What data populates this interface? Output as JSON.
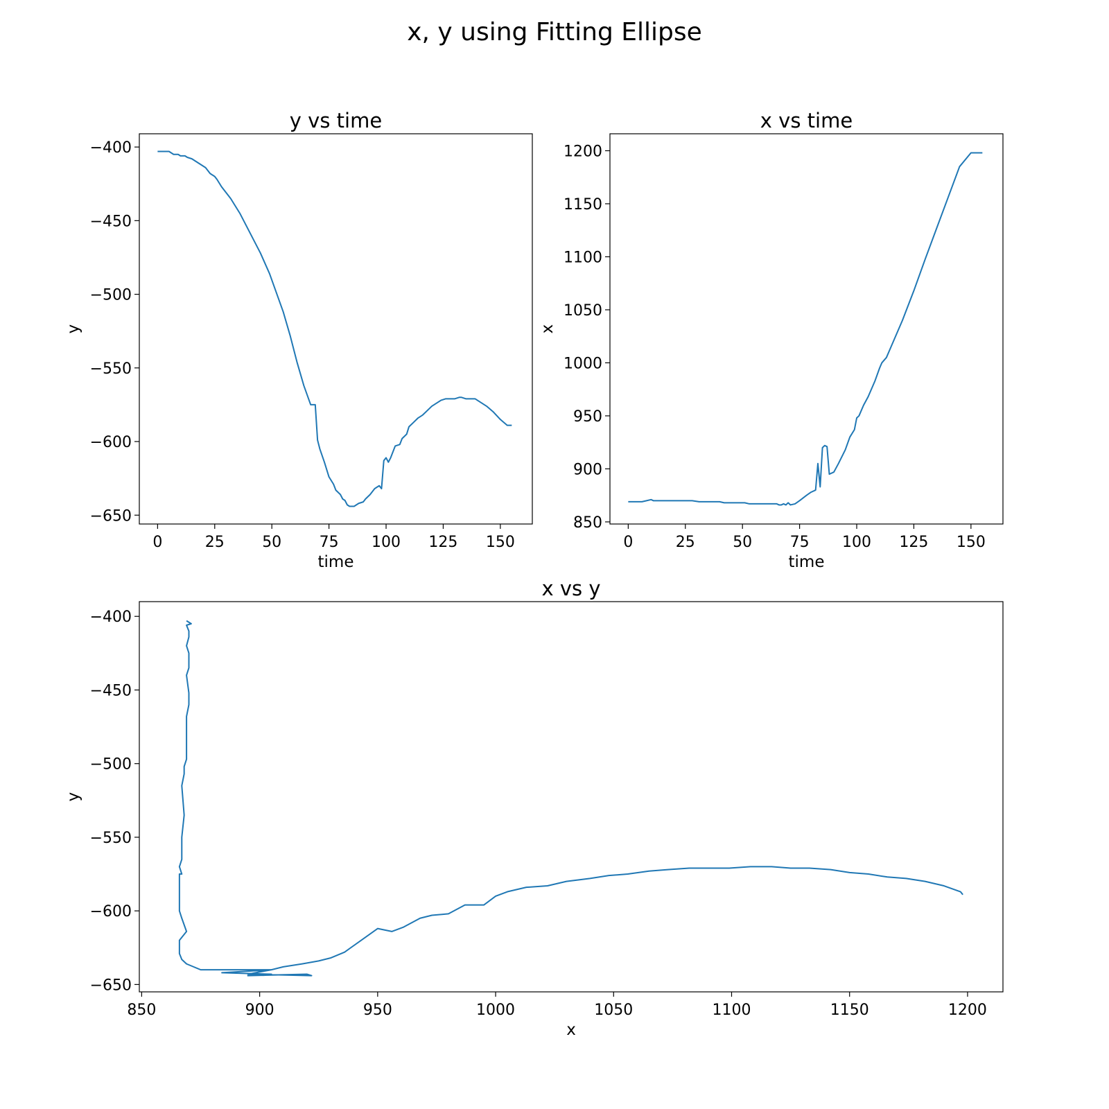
{
  "figure": {
    "title": "x, y using Fitting Ellipse"
  },
  "chart_data": [
    {
      "id": "y-vs-time",
      "type": "line",
      "title": "y vs time",
      "xlabel": "time",
      "ylabel": "y",
      "xlim": [
        -8,
        164
      ],
      "ylim": [
        -656,
        -391
      ],
      "xticks": [
        0,
        25,
        50,
        75,
        100,
        125,
        150
      ],
      "yticks": [
        -400,
        -450,
        -500,
        -550,
        -600,
        -650
      ],
      "grid": false,
      "color": "#1f77b4",
      "series": [
        {
          "x": [
            0,
            2,
            4,
            5,
            7,
            9,
            10,
            12,
            13,
            15,
            17,
            19,
            21,
            23,
            25,
            26,
            28,
            30,
            32,
            34,
            36,
            37,
            39,
            41,
            43,
            45,
            47,
            49,
            52,
            55,
            58,
            61,
            64,
            67,
            69,
            70,
            71,
            73,
            75,
            77,
            78,
            80,
            81,
            82,
            83,
            84,
            85,
            86,
            88,
            90,
            91,
            93,
            95,
            97,
            98,
            99,
            100,
            101,
            102,
            104,
            106,
            107,
            109,
            110,
            112,
            114,
            116,
            118,
            120,
            122,
            124,
            126,
            128,
            130,
            132,
            133,
            135,
            137,
            139,
            141,
            144,
            147,
            150,
            153,
            155
          ],
          "y": [
            -403,
            -403,
            -403,
            -403,
            -405,
            -405,
            -406,
            -406,
            -407,
            -408,
            -410,
            -412,
            -414,
            -418,
            -420,
            -422,
            -427,
            -431,
            -435,
            -440,
            -445,
            -448,
            -454,
            -460,
            -466,
            -472,
            -479,
            -486,
            -499,
            -512,
            -528,
            -546,
            -562,
            -575,
            -575,
            -599,
            -605,
            -614,
            -624,
            -629,
            -633,
            -636,
            -639,
            -640,
            -643,
            -644,
            -644,
            -644,
            -642,
            -641,
            -639,
            -636,
            -632,
            -630,
            -632,
            -613,
            -611,
            -614,
            -611,
            -603,
            -602,
            -598,
            -595,
            -590,
            -587,
            -584,
            -582,
            -579,
            -576,
            -574,
            -572,
            -571,
            -571,
            -571,
            -570,
            -570,
            -571,
            -571,
            -571,
            -573,
            -576,
            -580,
            -585,
            -589,
            -589
          ]
        }
      ]
    },
    {
      "id": "x-vs-time",
      "type": "line",
      "title": "x vs time",
      "xlabel": "time",
      "ylabel": "x",
      "xlim": [
        -8,
        164
      ],
      "ylim": [
        848,
        1216
      ],
      "xticks": [
        0,
        25,
        50,
        75,
        100,
        125,
        150
      ],
      "yticks": [
        850,
        900,
        950,
        1000,
        1050,
        1100,
        1150,
        1200
      ],
      "grid": false,
      "color": "#1f77b4",
      "series": [
        {
          "x": [
            0,
            3,
            6,
            8,
            10,
            11,
            14,
            17,
            20,
            22,
            25,
            28,
            31,
            33,
            36,
            40,
            42,
            45,
            48,
            51,
            53,
            56,
            60,
            63,
            65,
            66,
            67,
            68,
            69,
            70,
            71,
            73,
            75,
            78,
            80,
            82,
            83,
            84,
            85,
            86,
            87,
            88,
            90,
            92,
            95,
            97,
            99,
            100,
            101,
            103,
            105,
            107,
            108,
            110,
            111,
            113,
            115,
            120,
            125,
            130,
            135,
            140,
            145,
            150,
            152,
            154,
            155
          ],
          "y": [
            869,
            869,
            869,
            870,
            871,
            870,
            870,
            870,
            870,
            870,
            870,
            870,
            869,
            869,
            869,
            869,
            868,
            868,
            868,
            868,
            867,
            867,
            867,
            867,
            867,
            866,
            866,
            867,
            866,
            868,
            866,
            867,
            870,
            875,
            878,
            880,
            905,
            883,
            920,
            922,
            921,
            895,
            897,
            905,
            918,
            930,
            937,
            948,
            950,
            960,
            968,
            978,
            983,
            995,
            1000,
            1005,
            1015,
            1040,
            1068,
            1098,
            1127,
            1156,
            1185,
            1198,
            1198,
            1198,
            1198
          ]
        }
      ]
    },
    {
      "id": "x-vs-y",
      "type": "line",
      "title": "x vs y",
      "xlabel": "x",
      "ylabel": "y",
      "xlim": [
        849,
        1215
      ],
      "ylim": [
        -655,
        -390
      ],
      "xticks": [
        850,
        900,
        950,
        1000,
        1050,
        1100,
        1150,
        1200
      ],
      "yticks": [
        -400,
        -450,
        -500,
        -550,
        -600,
        -650
      ],
      "grid": false,
      "color": "#1f77b4",
      "series": [
        {
          "x": [
            869,
            870,
            871,
            869,
            870,
            870,
            869,
            870,
            870,
            869,
            870,
            870,
            869,
            869,
            869,
            868,
            868,
            867,
            868,
            867,
            867,
            867,
            866,
            867,
            866,
            866,
            867,
            869,
            866,
            866,
            866,
            867,
            869,
            872,
            875,
            880,
            884,
            905,
            884,
            905,
            895,
            920,
            922,
            895,
            905,
            910,
            918,
            925,
            930,
            936,
            943,
            950,
            956,
            961,
            968,
            973,
            980,
            987,
            995,
            1000,
            1005,
            1013,
            1022,
            1030,
            1040,
            1048,
            1056,
            1065,
            1073,
            1082,
            1090,
            1099,
            1108,
            1117,
            1125,
            1133,
            1142,
            1150,
            1158,
            1166,
            1174,
            1182,
            1190,
            1197,
            1198
          ],
          "y": [
            -403,
            -404,
            -405,
            -406,
            -410,
            -414,
            -420,
            -425,
            -435,
            -440,
            -452,
            -460,
            -468,
            -480,
            -497,
            -502,
            -507,
            -515,
            -535,
            -550,
            -560,
            -565,
            -570,
            -575,
            -575,
            -600,
            -605,
            -614,
            -620,
            -624,
            -629,
            -633,
            -636,
            -638,
            -640,
            -640,
            -640,
            -640,
            -642,
            -643,
            -644,
            -643,
            -644,
            -643,
            -640,
            -638,
            -636,
            -634,
            -632,
            -628,
            -620,
            -612,
            -614,
            -611,
            -605,
            -603,
            -602,
            -596,
            -596,
            -590,
            -587,
            -584,
            -583,
            -580,
            -578,
            -576,
            -575,
            -573,
            -572,
            -571,
            -571,
            -571,
            -570,
            -570,
            -571,
            -571,
            -572,
            -574,
            -575,
            -577,
            -578,
            -580,
            -583,
            -587,
            -589
          ]
        }
      ]
    }
  ]
}
